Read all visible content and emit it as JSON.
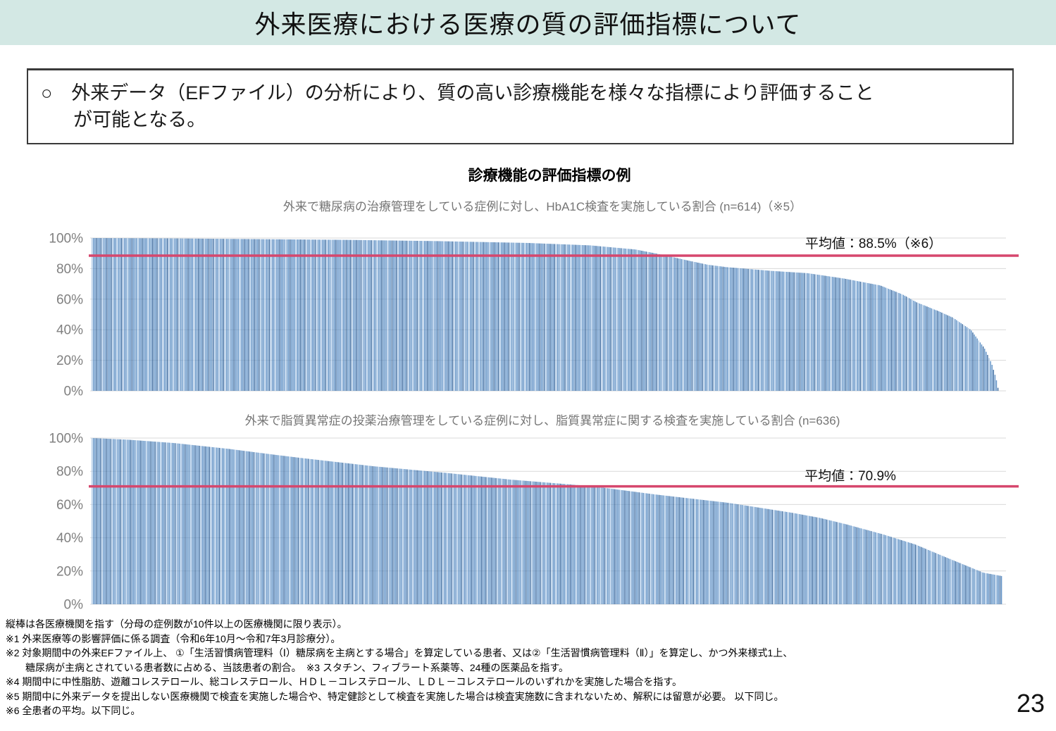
{
  "page": {
    "title": "外来医療における医療の質の評価指標について",
    "page_number": "23"
  },
  "summary_box": {
    "line1": "○　外来データ（EFファイル）の分析により、質の高い診療機能を様々な指標により評価すること",
    "line2": "が可能となる。"
  },
  "section_title": "診療機能の評価指標の例",
  "chart_data": [
    {
      "type": "bar",
      "title": "外来で糖尿病の治療管理をしている症例に対し、HbA1C検査を実施している割合 (n=614)（※5）",
      "n": 614,
      "unit": "%",
      "ylim": [
        0,
        100
      ],
      "yticks": [
        "100%",
        "80%",
        "60%",
        "40%",
        "20%",
        "0%"
      ],
      "grid": true,
      "sort_order": "descending",
      "x_meaning": "縦棒は各医療機関を指す",
      "mean_value": 88.5,
      "mean_label": "平均値：88.5%（※6）",
      "profile": [
        [
          0,
          100
        ],
        [
          8,
          99.8
        ],
        [
          18,
          99.3
        ],
        [
          28,
          98.8
        ],
        [
          38,
          98
        ],
        [
          48,
          96.8
        ],
        [
          55,
          95.2
        ],
        [
          60,
          92.5
        ],
        [
          63,
          89
        ],
        [
          66,
          85
        ],
        [
          68,
          82.5
        ],
        [
          70,
          81
        ],
        [
          75,
          78.5
        ],
        [
          79,
          77
        ],
        [
          83,
          73.5
        ],
        [
          87,
          69
        ],
        [
          89.5,
          63
        ],
        [
          91,
          58
        ],
        [
          93.5,
          52
        ],
        [
          95,
          48
        ],
        [
          97,
          40
        ],
        [
          98.5,
          28
        ],
        [
          99.3,
          18
        ],
        [
          99.8,
          8
        ],
        [
          100,
          2
        ]
      ]
    },
    {
      "type": "bar",
      "title": "外来で脂質異常症の投薬治療管理をしている症例に対し、脂質異常症に関する検査を実施している割合 (n=636)",
      "n": 636,
      "unit": "%",
      "ylim": [
        0,
        100
      ],
      "yticks": [
        "100%",
        "80%",
        "60%",
        "40%",
        "20%",
        "0%"
      ],
      "grid": true,
      "sort_order": "descending",
      "x_meaning": "縦棒は各医療機関を指す",
      "mean_value": 70.9,
      "mean_label": "平均値：70.9%",
      "profile": [
        [
          0,
          100
        ],
        [
          4,
          99
        ],
        [
          9,
          97
        ],
        [
          15,
          93.5
        ],
        [
          20,
          90
        ],
        [
          23,
          88
        ],
        [
          31,
          83
        ],
        [
          39,
          79
        ],
        [
          46,
          75
        ],
        [
          55,
          71
        ],
        [
          62,
          66
        ],
        [
          70,
          61
        ],
        [
          77,
          55
        ],
        [
          80,
          52
        ],
        [
          83,
          48
        ],
        [
          87,
          42
        ],
        [
          90.5,
          36
        ],
        [
          94,
          28
        ],
        [
          96,
          23.5
        ],
        [
          98,
          19
        ],
        [
          100,
          17
        ]
      ]
    }
  ],
  "footnotes": [
    "縦棒は各医療機関を指す（分母の症例数が10件以上の医療機関に限り表示）。",
    "※1 外来医療等の影響評価に係る調査（令和6年10月～令和7年3月診療分）。",
    "※2 対象期間中の外来EFファイル上、 ①「生活習慣病管理料（Ⅰ）糖尿病を主病とする場合」を算定している患者、又は②「生活習慣病管理料（Ⅱ）」を算定し、かつ外来様式1上、",
    "　　糖尿病が主病とされている患者数に占める、当該患者の割合。　※3 スタチン、フィブラート系薬等、24種の医薬品を指す。",
    "※4 期間中に中性脂肪、遊離コレステロール、総コレステロール、ＨＤＬ－コレステロール、ＬＤＬ－コレステロールのいずれかを実施した場合を指す。",
    "※5 期間中に外来データを提出しない医療機関で検査を実施した場合や、特定健診として検査を実施した場合は検査実施数に含まれないため、解釈には留意が必要。 以下同じ。",
    "※6 全患者の平均。以下同じ。"
  ],
  "colors": {
    "header_band": "#d3e8e4",
    "bar_blue": "#5b8ec4",
    "bar_blue_light": "#a9c6e5",
    "bar_blue_dark": "#39699f",
    "mean_line_red": "#d6476d",
    "axis_text_gray": "#808080",
    "gridline_gray": "#d9d9d9",
    "subtitle_gray": "#757575"
  }
}
